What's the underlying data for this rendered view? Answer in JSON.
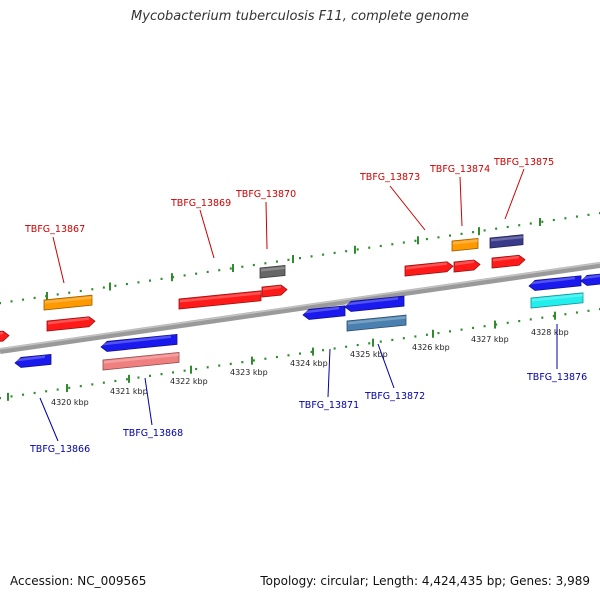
{
  "title": "Mycobacterium tuberculosis F11, complete genome",
  "footer": {
    "accession": "Accession: NC_009565",
    "stats": "Topology: circular; Length: 4,424,435 bp; Genes: 3,989"
  },
  "colors": {
    "backbone": "#808080",
    "tick": "#2e8b2e",
    "label_top": "#cc0000",
    "label_bottom": "#0000aa",
    "red": "#ff1a1a",
    "blue": "#1a1aee",
    "orange": "#ff9900",
    "grey": "#666666",
    "navy": "#3a3a8a",
    "pink": "#f08080",
    "steel": "#4a80b0",
    "cyan": "#22eeee"
  },
  "scale_labels": [
    {
      "text": "4320 kbp"
    },
    {
      "text": "4321 kbp"
    },
    {
      "text": "4322 kbp"
    },
    {
      "text": "4323 kbp"
    },
    {
      "text": "4324 kbp"
    },
    {
      "text": "4325 kbp"
    },
    {
      "text": "4326 kbp"
    },
    {
      "text": "4327 kbp"
    },
    {
      "text": "4328 kbp"
    }
  ],
  "gene_labels": [
    {
      "text": "TBFG_13867",
      "strand": "top"
    },
    {
      "text": "TBFG_13869",
      "strand": "top"
    },
    {
      "text": "TBFG_13870",
      "strand": "top"
    },
    {
      "text": "TBFG_13873",
      "strand": "top"
    },
    {
      "text": "TBFG_13874",
      "strand": "top"
    },
    {
      "text": "TBFG_13875",
      "strand": "top"
    },
    {
      "text": "TBFG_13866",
      "strand": "bottom"
    },
    {
      "text": "TBFG_13868",
      "strand": "bottom"
    },
    {
      "text": "TBFG_13871",
      "strand": "bottom"
    },
    {
      "text": "TBFG_13872",
      "strand": "bottom"
    },
    {
      "text": "TBFG_13876",
      "strand": "bottom"
    }
  ]
}
